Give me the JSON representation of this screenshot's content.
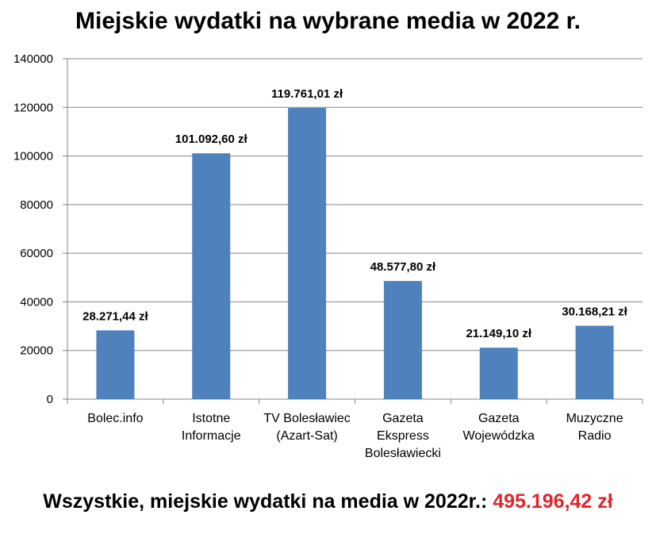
{
  "chart_data": {
    "type": "bar",
    "title": "Miejskie wydatki na wybrane media w 2022 r.",
    "categories": [
      [
        "Bolec.info"
      ],
      [
        "Istotne",
        "Informacje"
      ],
      [
        "TV Bolesławiec",
        "(Azart-Sat)"
      ],
      [
        "Gazeta",
        "Ekspress",
        "Bolesławiecki"
      ],
      [
        "Gazeta",
        "Wojewódzka"
      ],
      [
        "Muzyczne",
        "Radio"
      ]
    ],
    "values": [
      28271.44,
      101092.6,
      119761.01,
      48577.8,
      21149.1,
      30168.21
    ],
    "data_labels": [
      "28.271,44 zł",
      "101.092,60 zł",
      "119.761,01 zł",
      "48.577,80 zł",
      "21.149,10 zł",
      "30.168,21 zł"
    ],
    "ylim": [
      0,
      140000
    ],
    "yticks": [
      0,
      20000,
      40000,
      60000,
      80000,
      100000,
      120000,
      140000
    ],
    "xlabel": "",
    "ylabel": "",
    "grid": true,
    "legend": "none",
    "colors": {
      "bar": "#4f81bd",
      "grid": "#868686",
      "axis": "#868686",
      "text": "#000000"
    }
  },
  "footer": {
    "label": "Wszystkie, miejskie wydatki na media w 2022r.:",
    "total": "495.196,42 zł",
    "total_color": "#e0262b"
  }
}
